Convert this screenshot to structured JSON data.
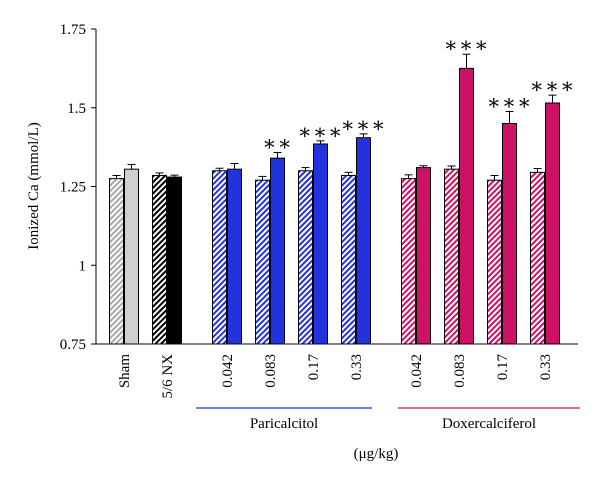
{
  "chart_data": {
    "type": "bar",
    "ylabel": "Ionized Ca (mmol/L)",
    "ylim": [
      0.75,
      1.75
    ],
    "yticks": [
      "0.75",
      "1",
      "1.25",
      "1.5",
      "1.75"
    ],
    "grid": false,
    "unit_label": "(μg/kg)",
    "groups": [
      {
        "name": "Paricalcitol",
        "color": "#2233dd",
        "categories": [
          "0.042",
          "0.083",
          "0.17",
          "0.33"
        ]
      },
      {
        "name": "Doxercalciferol",
        "color": "#cc1166",
        "categories": [
          "0.042",
          "0.083",
          "0.17",
          "0.33"
        ]
      }
    ],
    "categories": [
      "Sham",
      "5/6 NX",
      "0.042",
      "0.083",
      "0.17",
      "0.33",
      "0.042",
      "0.083",
      "0.17",
      "0.33"
    ],
    "series": [
      {
        "values": [
          1.275,
          1.285,
          1.3,
          1.27,
          1.3,
          1.285,
          1.275,
          1.305,
          1.27,
          1.295
        ],
        "errors": [
          0.01,
          0.008,
          0.008,
          0.012,
          0.01,
          0.01,
          0.012,
          0.01,
          0.015,
          0.012
        ]
      },
      {
        "values": [
          1.305,
          1.28,
          1.305,
          1.34,
          1.385,
          1.405,
          1.31,
          1.625,
          1.45,
          1.515
        ],
        "errors": [
          0.015,
          0.006,
          0.018,
          0.018,
          0.01,
          0.012,
          0.006,
          0.045,
          0.038,
          0.025
        ]
      }
    ],
    "colors": [
      "#d0d0d0",
      "#000000",
      "#2233dd",
      "#2233dd",
      "#2233dd",
      "#2233dd",
      "#cc1166",
      "#cc1166",
      "#cc1166",
      "#cc1166"
    ],
    "significance": [
      "",
      "",
      "",
      "**",
      "***",
      "***",
      "",
      "***",
      "***",
      "***"
    ]
  }
}
